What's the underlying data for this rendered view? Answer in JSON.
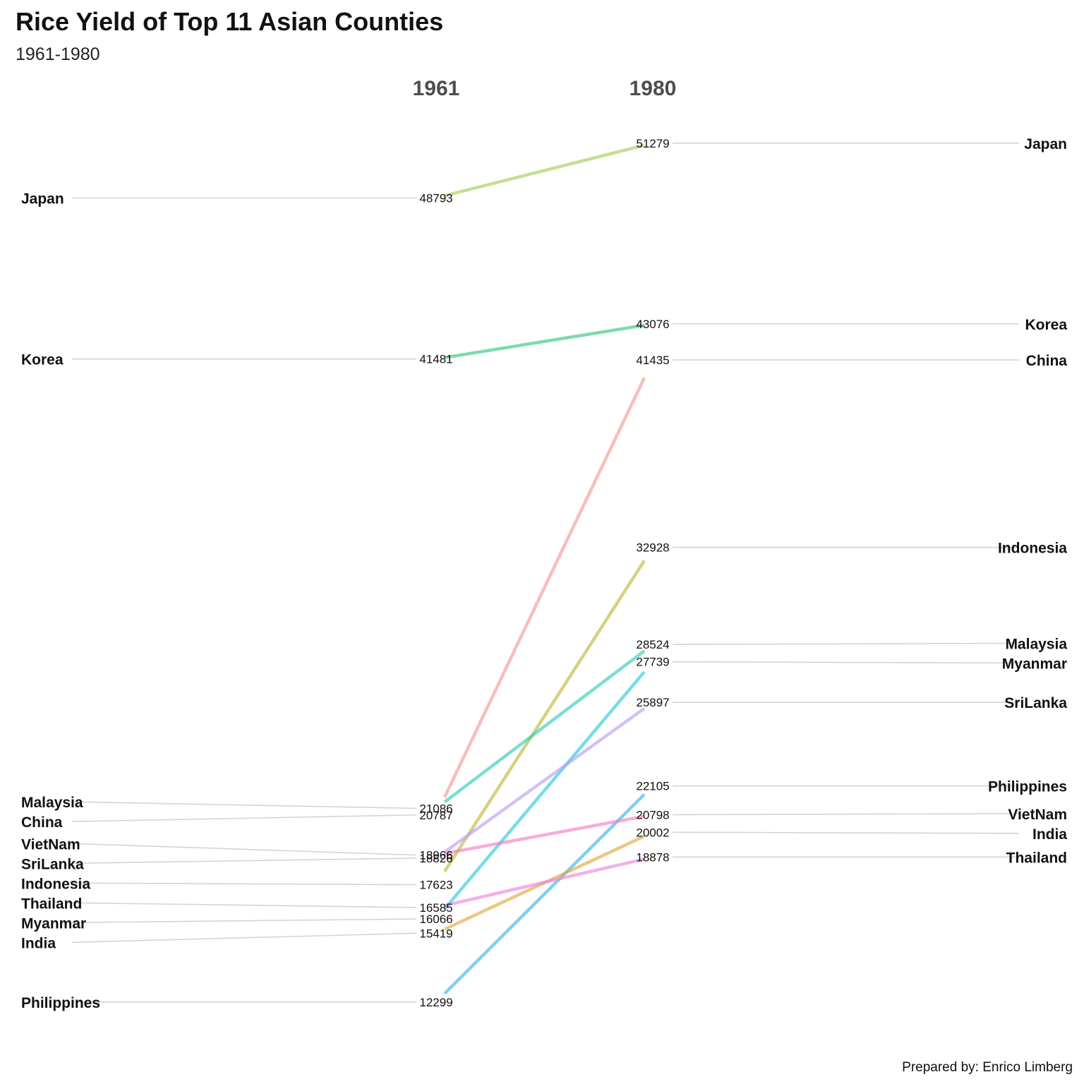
{
  "chart_data": {
    "type": "line",
    "title": "Rice Yield of Top 11 Asian Counties",
    "subtitle": "1961-1980",
    "caption": "Prepared by: Enrico Limberg",
    "x": [
      "1961",
      "1980"
    ],
    "legend": "none",
    "grid": false,
    "series": [
      {
        "name": "Japan",
        "values": [
          48793,
          51279
        ],
        "color": "#a3c954"
      },
      {
        "name": "Korea",
        "values": [
          41481,
          43076
        ],
        "color": "#2fc47c"
      },
      {
        "name": "China",
        "values": [
          20787,
          41435
        ],
        "color": "#f3948f"
      },
      {
        "name": "Indonesia",
        "values": [
          17623,
          32928
        ],
        "color": "#bdb430"
      },
      {
        "name": "Malaysia",
        "values": [
          21086,
          28524
        ],
        "color": "#27c9b5"
      },
      {
        "name": "Myanmar",
        "values": [
          16066,
          27739
        ],
        "color": "#22c6db"
      },
      {
        "name": "SriLanka",
        "values": [
          18826,
          25897
        ],
        "color": "#b99af0"
      },
      {
        "name": "Philippines",
        "values": [
          12299,
          22105
        ],
        "color": "#2eb1f6"
      },
      {
        "name": "VietNam",
        "values": [
          18966,
          20798
        ],
        "color": "#f677c3"
      },
      {
        "name": "India",
        "values": [
          15419,
          20002
        ],
        "color": "#e1a336"
      },
      {
        "name": "Thailand",
        "values": [
          16585,
          18878
        ],
        "color": "#ec7ee0"
      }
    ]
  }
}
